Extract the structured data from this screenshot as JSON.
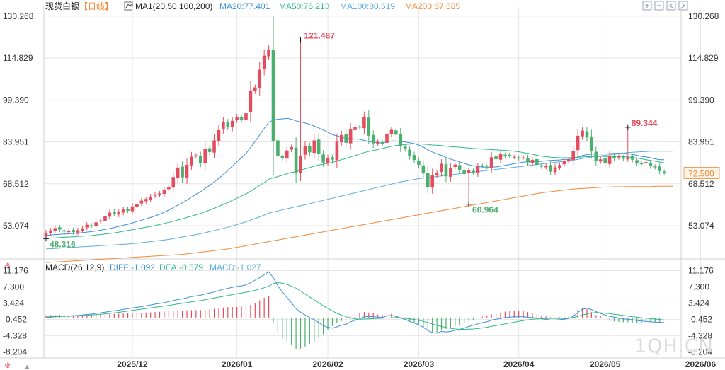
{
  "header": {
    "symbol": "现货白银",
    "period": "【日线】",
    "ma_label": "MA1(20,50,100,200)",
    "ma_values": [
      {
        "name": "MA20",
        "value": "77.401",
        "color": "#3b8fd9"
      },
      {
        "name": "MA50",
        "value": "76.213",
        "color": "#2fb88a"
      },
      {
        "name": "MA100",
        "value": "80.519",
        "color": "#5aaee0"
      },
      {
        "name": "MA200",
        "value": "67.585",
        "color": "#f0883a"
      }
    ],
    "macd_label": "MACD(26,12,9)",
    "macd_values": [
      {
        "name": "DIFF",
        "value": "-1.092",
        "color": "#3b8fd9"
      },
      {
        "name": "DEA",
        "value": "-0.579",
        "color": "#2fb88a"
      },
      {
        "name": "MACD",
        "value": "-1.027",
        "color": "#5aaee0"
      }
    ]
  },
  "toolbar": [
    "zoom-in-icon",
    "zoom-out-icon",
    "shift-left-icon",
    "shift-right-icon"
  ],
  "watermark": "1QH.CN",
  "colors": {
    "up": "#e54d5e",
    "down": "#4caf6e",
    "grid": "#e6e6e6",
    "dash": "#3b79c9",
    "last_price_bg": "#fff5e6",
    "last_price_text": "#f0883a"
  },
  "chart_data": {
    "type": "candlestick",
    "price_axis": {
      "ticks": [
        "130.268",
        "114.829",
        "99.390",
        "83.951",
        "68.512",
        "53.074"
      ],
      "ylim": [
        45.0,
        131.0
      ]
    },
    "macd_axis": {
      "ticks": [
        "11.176",
        "7.300",
        "3.424",
        "-0.452",
        "-4.328",
        "-8.204"
      ],
      "ylim": [
        -8.6,
        11.6
      ]
    },
    "x_ticks": [
      {
        "label": "2025/12",
        "index": 19
      },
      {
        "label": "2026/01",
        "index": 42
      },
      {
        "label": "2026/02",
        "index": 62
      },
      {
        "label": "2026/03",
        "index": 82
      },
      {
        "label": "2026/04",
        "index": 104
      },
      {
        "label": "2026/05",
        "index": 123
      },
      {
        "label": "2026/06",
        "index": 144
      }
    ],
    "annotations": [
      {
        "label": "121.487",
        "index": 56,
        "value": 121.487,
        "kind": "high",
        "color": "#e54d5e"
      },
      {
        "label": "60.964",
        "index": 93,
        "value": 60.964,
        "kind": "low",
        "color": "#4caf6e"
      },
      {
        "label": "48.316",
        "index": 0,
        "value": 48.316,
        "kind": "low",
        "color": "#4caf6e"
      },
      {
        "label": "89.344",
        "index": 128,
        "value": 89.344,
        "kind": "high",
        "color": "#e54d5e"
      }
    ],
    "last_price": "72.500",
    "last_price_value": 72.5,
    "close": [
      50.5,
      51.3,
      52.2,
      51.6,
      50.9,
      51.2,
      50.7,
      51.4,
      52.1,
      53.4,
      53.0,
      54.3,
      55.0,
      56.6,
      57.9,
      57.4,
      58.1,
      59.0,
      58.6,
      60.2,
      61.0,
      62.3,
      62.9,
      63.8,
      64.6,
      65.0,
      66.2,
      67.3,
      71.0,
      74.5,
      70.9,
      75.5,
      78.5,
      79.0,
      76.2,
      81.3,
      80.2,
      84.5,
      88.3,
      91.4,
      89.5,
      91.7,
      93.2,
      92.1,
      94.5,
      102.9,
      104.0,
      110.5,
      115.7,
      118.0,
      84.2,
      78.9,
      78.0,
      80.8,
      82.0,
      72.6,
      78.9,
      82.5,
      80.1,
      84.5,
      79.5,
      76.4,
      78.0,
      77.4,
      84.0,
      86.5,
      83.6,
      88.5,
      89.3,
      89.2,
      93.1,
      86.2,
      83.4,
      84.0,
      83.3,
      87.0,
      88.4,
      86.6,
      82.4,
      81.3,
      78.8,
      77.3,
      75.5,
      72.3,
      67.3,
      71.8,
      72.6,
      75.9,
      71.3,
      74.4,
      75.6,
      73.7,
      72.1,
      73.5,
      72.7,
      74.8,
      75.0,
      74.6,
      78.3,
      77.6,
      79.4,
      78.9,
      78.6,
      78.4,
      77.9,
      78.2,
      76.4,
      77.3,
      75.5,
      74.8,
      75.1,
      73.0,
      74.6,
      75.4,
      76.9,
      77.5,
      80.6,
      86.2,
      88.1,
      85.6,
      80.5,
      76.9,
      77.5,
      76.0,
      78.8,
      77.9,
      78.5,
      77.7,
      78.3,
      77.4,
      76.2,
      75.9,
      76.5,
      75.1,
      74.6,
      73.2,
      72.5
    ],
    "candles_note": "open/high/low derived from close in script",
    "macd_hist": [
      0.55,
      0.6,
      0.62,
      0.62,
      0.6,
      0.55,
      0.52,
      0.54,
      0.56,
      0.58,
      0.64,
      0.72,
      0.79,
      0.82,
      0.84,
      0.88,
      0.92,
      0.95,
      1.0,
      1.06,
      1.1,
      1.14,
      1.18,
      1.24,
      1.32,
      1.36,
      1.42,
      1.52,
      1.54,
      1.56,
      1.6,
      1.7,
      1.76,
      1.78,
      1.76,
      1.84,
      1.9,
      2.1,
      2.28,
      2.4,
      2.5,
      2.5,
      2.5,
      2.6,
      2.7,
      3.0,
      3.5,
      4.1,
      4.7,
      5.2,
      -1.1,
      -3.5,
      -4.9,
      -5.6,
      -6.5,
      -7.5,
      -7.4,
      -6.9,
      -6.2,
      -5.6,
      -4.8,
      -4.0,
      -3.0,
      -2.0,
      -1.2,
      -0.8,
      -0.3,
      0.2,
      0.7,
      1.0,
      1.3,
      1.2,
      1.0,
      0.7,
      0.6,
      0.8,
      0.9,
      0.6,
      0.1,
      -0.4,
      -1.0,
      -1.4,
      -1.8,
      -2.4,
      -3.1,
      -3.6,
      -3.5,
      -2.9,
      -2.7,
      -2.4,
      -2.0,
      -1.8,
      -1.3,
      -0.8,
      -0.5,
      -0.1,
      0.2,
      0.5,
      0.8,
      1.0,
      1.2,
      1.4,
      1.5,
      1.6,
      1.6,
      1.5,
      1.3,
      1.1,
      0.8,
      0.5,
      0.3,
      0.1,
      0.0,
      0.1,
      0.2,
      0.4,
      0.9,
      1.8,
      2.3,
      2.0,
      1.3,
      0.6,
      0.3,
      -0.2,
      -0.6,
      -0.9,
      -1.0,
      -1.1,
      -1.1,
      -1.2,
      -1.3,
      -1.3,
      -1.2,
      -1.1,
      -1.1,
      -1.0
    ],
    "series": [
      {
        "name": "DIFF",
        "color": "#3b8fd9",
        "values": [
          0.1,
          0.2,
          0.3,
          0.35,
          0.36,
          0.4,
          0.45,
          0.5,
          0.6,
          0.75,
          0.85,
          1.0,
          1.15,
          1.3,
          1.45,
          1.6,
          1.75,
          1.95,
          2.1,
          2.3,
          2.45,
          2.6,
          2.8,
          3.0,
          3.2,
          3.35,
          3.55,
          3.8,
          4.05,
          4.3,
          4.45,
          4.7,
          5.0,
          5.15,
          5.3,
          5.6,
          5.85,
          6.1,
          6.4,
          6.75,
          6.95,
          7.2,
          7.4,
          7.55,
          7.8,
          8.3,
          8.9,
          9.5,
          10.2,
          10.9,
          9.5,
          7.6,
          6.1,
          4.8,
          3.5,
          2.1,
          1.3,
          0.6,
          0.0,
          -0.5,
          -1.2,
          -1.9,
          -2.3,
          -2.5,
          -2.2,
          -1.8,
          -1.6,
          -1.0,
          -0.6,
          -0.3,
          0.2,
          0.3,
          0.2,
          0.1,
          0.05,
          0.4,
          0.5,
          0.3,
          -0.1,
          -0.4,
          -0.9,
          -1.3,
          -1.7,
          -2.3,
          -3.1,
          -3.6,
          -3.7,
          -3.3,
          -3.4,
          -3.3,
          -3.0,
          -2.8,
          -2.5,
          -2.1,
          -1.8,
          -1.5,
          -1.2,
          -1.0,
          -0.6,
          -0.4,
          -0.2,
          0.0,
          0.1,
          0.2,
          0.2,
          0.2,
          0.1,
          0.0,
          -0.1,
          -0.3,
          -0.4,
          -0.6,
          -0.6,
          -0.5,
          -0.4,
          -0.2,
          0.3,
          1.2,
          2.0,
          2.2,
          1.9,
          1.4,
          1.0,
          0.6,
          0.3,
          0.1,
          -0.1,
          -0.3,
          -0.4,
          -0.5,
          -0.7,
          -0.8,
          -0.9,
          -1.0,
          -1.1,
          -1.1,
          -1.2
        ]
      },
      {
        "name": "DEA",
        "color": "#2fb88a",
        "values": [
          0.0,
          0.1,
          0.2,
          0.25,
          0.3,
          0.33,
          0.36,
          0.4,
          0.45,
          0.52,
          0.6,
          0.7,
          0.8,
          0.9,
          1.0,
          1.12,
          1.25,
          1.4,
          1.55,
          1.7,
          1.85,
          2.0,
          2.15,
          2.3,
          2.45,
          2.6,
          2.75,
          2.9,
          3.05,
          3.25,
          3.4,
          3.55,
          3.75,
          3.9,
          4.05,
          4.25,
          4.45,
          4.65,
          4.85,
          5.05,
          5.25,
          5.45,
          5.65,
          5.85,
          6.05,
          6.25,
          6.5,
          6.8,
          7.1,
          7.5,
          8.1,
          8.3,
          8.2,
          7.9,
          7.5,
          7.0,
          6.3,
          5.6,
          4.9,
          4.2,
          3.5,
          2.8,
          2.2,
          1.6,
          1.0,
          0.6,
          0.2,
          -0.1,
          -0.3,
          -0.4,
          -0.35,
          -0.3,
          -0.25,
          -0.2,
          -0.15,
          -0.1,
          -0.05,
          0.0,
          -0.05,
          -0.15,
          -0.3,
          -0.45,
          -0.65,
          -0.9,
          -1.2,
          -1.5,
          -1.85,
          -2.1,
          -2.35,
          -2.55,
          -2.7,
          -2.8,
          -2.8,
          -2.75,
          -2.7,
          -2.6,
          -2.45,
          -2.3,
          -2.1,
          -1.9,
          -1.7,
          -1.5,
          -1.3,
          -1.1,
          -0.9,
          -0.7,
          -0.55,
          -0.4,
          -0.3,
          -0.25,
          -0.2,
          -0.2,
          -0.2,
          -0.2,
          -0.2,
          -0.15,
          0.0,
          0.3,
          0.6,
          0.9,
          1.1,
          1.2,
          1.15,
          1.05,
          0.95,
          0.8,
          0.65,
          0.5,
          0.35,
          0.2,
          0.1,
          -0.05,
          -0.15,
          -0.25,
          -0.35,
          -0.45,
          -0.58
        ]
      }
    ],
    "moving_averages": [
      {
        "name": "MA20",
        "color": "#3b8fd9",
        "values": [
          49.4,
          49.6,
          49.8,
          49.9,
          50.0,
          50.1,
          50.2,
          50.3,
          50.5,
          50.7,
          50.9,
          51.1,
          51.4,
          51.7,
          52.0,
          52.4,
          52.8,
          53.2,
          53.6,
          54.1,
          54.6,
          55.1,
          55.6,
          56.1,
          56.7,
          57.3,
          58.0,
          58.8,
          59.7,
          60.7,
          61.5,
          62.5,
          63.6,
          64.7,
          65.6,
          66.8,
          67.9,
          69.2,
          70.5,
          71.9,
          73.4,
          75.0,
          76.6,
          78.1,
          79.7,
          81.9,
          84.1,
          86.5,
          88.9,
          91.2,
          91.9,
          92.3,
          92.4,
          92.6,
          92.3,
          91.7,
          91.3,
          90.9,
          90.4,
          89.8,
          89.1,
          88.3,
          87.5,
          86.6,
          86.2,
          85.7,
          85.3,
          85.2,
          85.0,
          84.9,
          84.5,
          84.1,
          83.8,
          83.6,
          83.6,
          83.9,
          84.3,
          84.3,
          84.1,
          83.9,
          83.6,
          83.3,
          82.8,
          82.0,
          81.0,
          80.2,
          79.5,
          79.0,
          78.2,
          77.6,
          77.1,
          76.6,
          76.0,
          75.5,
          75.1,
          74.9,
          74.7,
          74.6,
          74.7,
          74.7,
          75.0,
          75.3,
          75.6,
          75.9,
          76.2,
          76.5,
          76.6,
          76.7,
          76.7,
          76.8,
          77.0,
          77.1,
          77.2,
          77.3,
          77.5,
          77.5,
          77.8,
          78.3,
          78.9,
          79.3,
          79.4,
          79.5,
          79.5,
          79.5,
          79.6,
          79.7,
          79.8,
          79.8,
          79.6,
          79.3,
          79.0,
          78.6,
          78.4,
          78.1,
          77.7,
          77.4,
          77.4
        ]
      },
      {
        "name": "MA50",
        "color": "#2fb88a",
        "values": [
          48.4,
          48.5,
          48.6,
          48.7,
          48.8,
          48.9,
          49.0,
          49.1,
          49.2,
          49.3,
          49.4,
          49.6,
          49.8,
          50.0,
          50.2,
          50.4,
          50.7,
          51.0,
          51.3,
          51.6,
          51.9,
          52.2,
          52.5,
          52.8,
          53.1,
          53.5,
          53.9,
          54.3,
          54.7,
          55.2,
          55.6,
          56.1,
          56.6,
          57.1,
          57.6,
          58.2,
          58.8,
          59.5,
          60.2,
          60.9,
          61.6,
          62.4,
          63.2,
          64.0,
          64.8,
          65.8,
          66.8,
          67.9,
          69.0,
          70.2,
          70.7,
          71.2,
          71.6,
          72.2,
          72.7,
          73.0,
          73.5,
          74.0,
          74.5,
          75.0,
          75.4,
          75.7,
          76.1,
          76.4,
          76.9,
          77.4,
          77.8,
          78.4,
          78.9,
          79.5,
          80.0,
          80.4,
          80.8,
          81.1,
          81.5,
          81.9,
          82.3,
          82.6,
          82.8,
          83.0,
          83.1,
          83.2,
          83.2,
          83.1,
          83.0,
          82.8,
          82.7,
          82.6,
          82.4,
          82.2,
          82.1,
          82.0,
          81.8,
          81.7,
          81.5,
          81.4,
          81.3,
          81.2,
          81.1,
          81.0,
          80.9,
          80.8,
          80.7,
          80.5,
          80.3,
          80.0,
          79.7,
          79.4,
          79.0,
          78.7,
          78.5,
          78.3,
          78.2,
          78.1,
          78.1,
          78.1,
          78.2,
          78.3,
          78.4,
          78.5,
          78.5,
          78.5,
          78.6,
          78.6,
          78.6,
          78.6,
          78.6,
          78.5,
          78.4,
          78.2,
          78.0,
          77.7,
          77.4,
          77.1,
          76.8,
          76.5,
          76.2
        ]
      },
      {
        "name": "MA100",
        "color": "#5aaee0",
        "values": [
          44.5,
          44.6,
          44.7,
          44.8,
          44.9,
          45.0,
          45.1,
          45.2,
          45.3,
          45.4,
          45.5,
          45.6,
          45.7,
          45.8,
          45.9,
          46.0,
          46.1,
          46.2,
          46.3,
          46.5,
          46.6,
          46.8,
          47.0,
          47.2,
          47.4,
          47.6,
          47.8,
          48.0,
          48.3,
          48.6,
          48.9,
          49.2,
          49.5,
          49.8,
          50.1,
          50.5,
          50.9,
          51.3,
          51.7,
          52.1,
          52.5,
          53.0,
          53.5,
          54.0,
          54.5,
          55.1,
          55.7,
          56.3,
          57.0,
          57.7,
          58.1,
          58.5,
          58.9,
          59.3,
          59.7,
          60.0,
          60.4,
          60.8,
          61.2,
          61.6,
          62.0,
          62.4,
          62.8,
          63.2,
          63.6,
          64.0,
          64.4,
          64.8,
          65.2,
          65.6,
          66.0,
          66.4,
          66.8,
          67.2,
          67.6,
          68.0,
          68.4,
          68.8,
          69.2,
          69.5,
          69.8,
          70.1,
          70.4,
          70.6,
          70.8,
          71.0,
          71.2,
          71.4,
          71.6,
          71.8,
          72.0,
          72.2,
          72.4,
          72.6,
          72.8,
          73.0,
          73.2,
          73.4,
          73.6,
          73.8,
          74.0,
          74.2,
          74.4,
          74.6,
          74.8,
          75.0,
          75.2,
          75.4,
          75.6,
          75.8,
          76.0,
          76.2,
          76.4,
          76.6,
          76.8,
          77.0,
          77.2,
          77.5,
          77.8,
          78.1,
          78.4,
          78.6,
          78.8,
          79.0,
          79.2,
          79.4,
          79.6,
          79.8,
          80.0,
          80.1,
          80.2,
          80.3,
          80.4,
          80.5,
          80.5,
          80.5,
          80.5,
          80.5,
          80.5
        ]
      },
      {
        "name": "MA200",
        "color": "#f0883a",
        "values": [
          39.5,
          39.6,
          39.7,
          39.8,
          39.9,
          40.0,
          40.1,
          40.2,
          40.3,
          40.4,
          40.5,
          40.6,
          40.7,
          40.8,
          40.9,
          41.0,
          41.1,
          41.2,
          41.3,
          41.4,
          41.5,
          41.6,
          41.7,
          41.8,
          41.9,
          42.0,
          42.1,
          42.2,
          42.3,
          42.4,
          42.5,
          42.7,
          42.9,
          43.1,
          43.3,
          43.5,
          43.7,
          43.9,
          44.1,
          44.3,
          44.5,
          44.8,
          45.1,
          45.4,
          45.7,
          46.0,
          46.3,
          46.6,
          46.9,
          47.2,
          47.5,
          47.8,
          48.1,
          48.4,
          48.7,
          49.0,
          49.3,
          49.6,
          49.9,
          50.2,
          50.5,
          50.8,
          51.1,
          51.4,
          51.7,
          52.0,
          52.3,
          52.6,
          52.9,
          53.2,
          53.5,
          53.8,
          54.1,
          54.4,
          54.7,
          55.0,
          55.3,
          55.6,
          55.9,
          56.2,
          56.5,
          56.8,
          57.1,
          57.4,
          57.7,
          58.0,
          58.3,
          58.6,
          58.9,
          59.2,
          59.5,
          59.8,
          60.1,
          60.4,
          60.7,
          61.0,
          61.3,
          61.6,
          61.9,
          62.2,
          62.5,
          62.8,
          63.1,
          63.4,
          63.7,
          64.0,
          64.3,
          64.6,
          64.9,
          65.2,
          65.4,
          65.6,
          65.8,
          66.0,
          66.2,
          66.4,
          66.6,
          66.7,
          66.8,
          66.9,
          67.0,
          67.1,
          67.2,
          67.3,
          67.3,
          67.4,
          67.4,
          67.4,
          67.5,
          67.5,
          67.5,
          67.5,
          67.5,
          67.5,
          67.6,
          67.6,
          67.6,
          67.6,
          67.6
        ]
      }
    ]
  }
}
